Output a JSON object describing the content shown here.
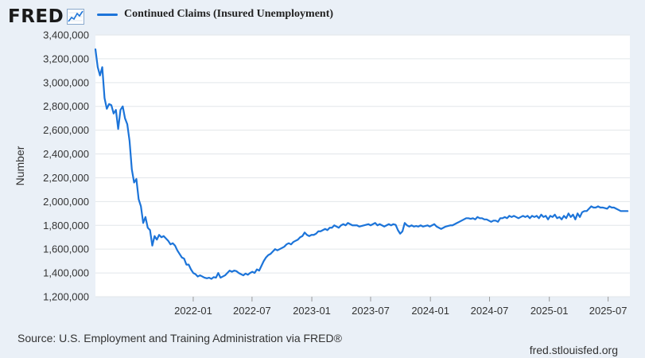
{
  "header": {
    "logo_text": "FRED",
    "logo_icon": "chart-line-icon"
  },
  "legend": {
    "label": "Continued Claims (Insured Unemployment)",
    "color": "#1c74d9"
  },
  "footer": {
    "source": "Source: U.S. Employment and Training Administration via FRED®",
    "site": "fred.stlouisfed.org"
  },
  "colors": {
    "background": "#eaf0f7",
    "plot_background": "#ffffff",
    "series": "#1c74d9",
    "grid": "#e2e6ea"
  },
  "chart_data": {
    "type": "line",
    "title": "",
    "xlabel": "",
    "ylabel": "Number",
    "ylim": [
      1200000,
      3400000
    ],
    "xlim": [
      "2021-03-06",
      "2025-09-06"
    ],
    "grid": "horizontal",
    "legend_position": "top-left",
    "y_ticks": [
      1200000,
      1400000,
      1600000,
      1800000,
      2000000,
      2200000,
      2400000,
      2600000,
      2800000,
      3000000,
      3200000,
      3400000
    ],
    "y_tick_labels": [
      "1,200,000",
      "1,400,000",
      "1,600,000",
      "1,800,000",
      "2,000,000",
      "2,200,000",
      "2,400,000",
      "2,600,000",
      "2,800,000",
      "3,000,000",
      "3,200,000",
      "3,400,000"
    ],
    "x_ticks": [
      "2022-01-01",
      "2022-07-01",
      "2023-01-01",
      "2023-07-01",
      "2024-01-01",
      "2024-07-01",
      "2025-01-01",
      "2025-07-01"
    ],
    "x_tick_labels": [
      "2022-01",
      "2022-07",
      "2023-01",
      "2023-07",
      "2024-01",
      "2024-07",
      "2025-01",
      "2025-07"
    ],
    "series": [
      {
        "name": "Continued Claims (Insured Unemployment)",
        "points": [
          [
            "2021-03-06",
            3280000
          ],
          [
            "2021-03-13",
            3130000
          ],
          [
            "2021-03-20",
            3060000
          ],
          [
            "2021-03-27",
            3130000
          ],
          [
            "2021-04-03",
            2870000
          ],
          [
            "2021-04-10",
            2780000
          ],
          [
            "2021-04-17",
            2820000
          ],
          [
            "2021-04-24",
            2810000
          ],
          [
            "2021-05-01",
            2740000
          ],
          [
            "2021-05-08",
            2770000
          ],
          [
            "2021-05-15",
            2610000
          ],
          [
            "2021-05-22",
            2770000
          ],
          [
            "2021-05-29",
            2800000
          ],
          [
            "2021-06-05",
            2700000
          ],
          [
            "2021-06-12",
            2650000
          ],
          [
            "2021-06-19",
            2510000
          ],
          [
            "2021-06-26",
            2270000
          ],
          [
            "2021-07-03",
            2160000
          ],
          [
            "2021-07-10",
            2190000
          ],
          [
            "2021-07-17",
            2020000
          ],
          [
            "2021-07-24",
            1960000
          ],
          [
            "2021-07-31",
            1820000
          ],
          [
            "2021-08-07",
            1870000
          ],
          [
            "2021-08-14",
            1780000
          ],
          [
            "2021-08-21",
            1760000
          ],
          [
            "2021-08-28",
            1630000
          ],
          [
            "2021-09-04",
            1710000
          ],
          [
            "2021-09-11",
            1680000
          ],
          [
            "2021-09-18",
            1720000
          ],
          [
            "2021-09-25",
            1700000
          ],
          [
            "2021-10-02",
            1710000
          ],
          [
            "2021-10-09",
            1690000
          ],
          [
            "2021-10-16",
            1670000
          ],
          [
            "2021-10-23",
            1640000
          ],
          [
            "2021-10-30",
            1650000
          ],
          [
            "2021-11-06",
            1630000
          ],
          [
            "2021-11-13",
            1590000
          ],
          [
            "2021-11-20",
            1560000
          ],
          [
            "2021-11-27",
            1530000
          ],
          [
            "2021-12-04",
            1520000
          ],
          [
            "2021-12-11",
            1470000
          ],
          [
            "2021-12-18",
            1470000
          ],
          [
            "2021-12-25",
            1430000
          ],
          [
            "2022-01-01",
            1400000
          ],
          [
            "2022-01-08",
            1390000
          ],
          [
            "2022-01-15",
            1370000
          ],
          [
            "2022-01-22",
            1380000
          ],
          [
            "2022-01-29",
            1370000
          ],
          [
            "2022-02-05",
            1360000
          ],
          [
            "2022-02-12",
            1355000
          ],
          [
            "2022-02-19",
            1360000
          ],
          [
            "2022-02-26",
            1350000
          ],
          [
            "2022-03-05",
            1365000
          ],
          [
            "2022-03-12",
            1360000
          ],
          [
            "2022-03-19",
            1400000
          ],
          [
            "2022-03-26",
            1360000
          ],
          [
            "2022-04-02",
            1370000
          ],
          [
            "2022-04-09",
            1380000
          ],
          [
            "2022-04-16",
            1400000
          ],
          [
            "2022-04-23",
            1420000
          ],
          [
            "2022-04-30",
            1410000
          ],
          [
            "2022-05-07",
            1420000
          ],
          [
            "2022-05-14",
            1415000
          ],
          [
            "2022-05-21",
            1400000
          ],
          [
            "2022-05-28",
            1390000
          ],
          [
            "2022-06-04",
            1380000
          ],
          [
            "2022-06-11",
            1395000
          ],
          [
            "2022-06-18",
            1385000
          ],
          [
            "2022-06-25",
            1400000
          ],
          [
            "2022-07-02",
            1410000
          ],
          [
            "2022-07-09",
            1400000
          ],
          [
            "2022-07-16",
            1430000
          ],
          [
            "2022-07-23",
            1420000
          ],
          [
            "2022-07-30",
            1460000
          ],
          [
            "2022-08-06",
            1500000
          ],
          [
            "2022-08-13",
            1530000
          ],
          [
            "2022-08-20",
            1550000
          ],
          [
            "2022-08-27",
            1560000
          ],
          [
            "2022-09-03",
            1580000
          ],
          [
            "2022-09-10",
            1600000
          ],
          [
            "2022-09-17",
            1590000
          ],
          [
            "2022-09-24",
            1600000
          ],
          [
            "2022-10-01",
            1610000
          ],
          [
            "2022-10-08",
            1620000
          ],
          [
            "2022-10-15",
            1640000
          ],
          [
            "2022-10-22",
            1650000
          ],
          [
            "2022-10-29",
            1640000
          ],
          [
            "2022-11-05",
            1660000
          ],
          [
            "2022-11-12",
            1670000
          ],
          [
            "2022-11-19",
            1680000
          ],
          [
            "2022-11-26",
            1700000
          ],
          [
            "2022-12-03",
            1710000
          ],
          [
            "2022-12-10",
            1740000
          ],
          [
            "2022-12-17",
            1720000
          ],
          [
            "2022-12-24",
            1710000
          ],
          [
            "2022-12-31",
            1720000
          ],
          [
            "2023-01-07",
            1720000
          ],
          [
            "2023-01-14",
            1730000
          ],
          [
            "2023-01-21",
            1750000
          ],
          [
            "2023-01-28",
            1750000
          ],
          [
            "2023-02-04",
            1760000
          ],
          [
            "2023-02-11",
            1770000
          ],
          [
            "2023-02-18",
            1760000
          ],
          [
            "2023-02-25",
            1780000
          ],
          [
            "2023-03-04",
            1780000
          ],
          [
            "2023-03-11",
            1800000
          ],
          [
            "2023-03-18",
            1790000
          ],
          [
            "2023-03-25",
            1780000
          ],
          [
            "2023-04-01",
            1800000
          ],
          [
            "2023-04-08",
            1810000
          ],
          [
            "2023-04-15",
            1800000
          ],
          [
            "2023-04-22",
            1820000
          ],
          [
            "2023-04-29",
            1810000
          ],
          [
            "2023-05-06",
            1800000
          ],
          [
            "2023-05-13",
            1800000
          ],
          [
            "2023-05-20",
            1800000
          ],
          [
            "2023-05-27",
            1790000
          ],
          [
            "2023-06-03",
            1795000
          ],
          [
            "2023-06-10",
            1800000
          ],
          [
            "2023-06-17",
            1805000
          ],
          [
            "2023-06-24",
            1810000
          ],
          [
            "2023-07-01",
            1800000
          ],
          [
            "2023-07-08",
            1810000
          ],
          [
            "2023-07-15",
            1820000
          ],
          [
            "2023-07-22",
            1800000
          ],
          [
            "2023-07-29",
            1810000
          ],
          [
            "2023-08-05",
            1800000
          ],
          [
            "2023-08-12",
            1790000
          ],
          [
            "2023-08-19",
            1800000
          ],
          [
            "2023-08-26",
            1810000
          ],
          [
            "2023-09-02",
            1800000
          ],
          [
            "2023-09-09",
            1810000
          ],
          [
            "2023-09-16",
            1805000
          ],
          [
            "2023-09-23",
            1760000
          ],
          [
            "2023-09-30",
            1730000
          ],
          [
            "2023-10-07",
            1750000
          ],
          [
            "2023-10-14",
            1820000
          ],
          [
            "2023-10-21",
            1800000
          ],
          [
            "2023-10-28",
            1790000
          ],
          [
            "2023-11-04",
            1800000
          ],
          [
            "2023-11-11",
            1790000
          ],
          [
            "2023-11-18",
            1795000
          ],
          [
            "2023-11-25",
            1790000
          ],
          [
            "2023-12-02",
            1800000
          ],
          [
            "2023-12-09",
            1790000
          ],
          [
            "2023-12-16",
            1795000
          ],
          [
            "2023-12-23",
            1800000
          ],
          [
            "2023-12-30",
            1790000
          ],
          [
            "2024-01-06",
            1800000
          ],
          [
            "2024-01-13",
            1810000
          ],
          [
            "2024-01-20",
            1790000
          ],
          [
            "2024-01-27",
            1780000
          ],
          [
            "2024-02-03",
            1770000
          ],
          [
            "2024-02-10",
            1780000
          ],
          [
            "2024-02-17",
            1790000
          ],
          [
            "2024-02-24",
            1795000
          ],
          [
            "2024-03-02",
            1800000
          ],
          [
            "2024-03-09",
            1800000
          ],
          [
            "2024-03-16",
            1810000
          ],
          [
            "2024-03-23",
            1820000
          ],
          [
            "2024-03-30",
            1830000
          ],
          [
            "2024-04-06",
            1840000
          ],
          [
            "2024-04-13",
            1850000
          ],
          [
            "2024-04-20",
            1860000
          ],
          [
            "2024-04-27",
            1860000
          ],
          [
            "2024-05-04",
            1855000
          ],
          [
            "2024-05-11",
            1860000
          ],
          [
            "2024-05-18",
            1850000
          ],
          [
            "2024-05-25",
            1870000
          ],
          [
            "2024-06-01",
            1860000
          ],
          [
            "2024-06-08",
            1860000
          ],
          [
            "2024-06-15",
            1850000
          ],
          [
            "2024-06-22",
            1850000
          ],
          [
            "2024-06-29",
            1840000
          ],
          [
            "2024-07-06",
            1830000
          ],
          [
            "2024-07-13",
            1840000
          ],
          [
            "2024-07-20",
            1840000
          ],
          [
            "2024-07-27",
            1830000
          ],
          [
            "2024-08-03",
            1860000
          ],
          [
            "2024-08-10",
            1860000
          ],
          [
            "2024-08-17",
            1870000
          ],
          [
            "2024-08-24",
            1860000
          ],
          [
            "2024-08-31",
            1880000
          ],
          [
            "2024-09-07",
            1870000
          ],
          [
            "2024-09-14",
            1880000
          ],
          [
            "2024-09-21",
            1870000
          ],
          [
            "2024-09-28",
            1860000
          ],
          [
            "2024-10-05",
            1870000
          ],
          [
            "2024-10-12",
            1880000
          ],
          [
            "2024-10-19",
            1870000
          ],
          [
            "2024-10-26",
            1880000
          ],
          [
            "2024-11-02",
            1860000
          ],
          [
            "2024-11-09",
            1880000
          ],
          [
            "2024-11-16",
            1870000
          ],
          [
            "2024-11-23",
            1880000
          ],
          [
            "2024-11-30",
            1860000
          ],
          [
            "2024-12-07",
            1890000
          ],
          [
            "2024-12-14",
            1870000
          ],
          [
            "2024-12-21",
            1880000
          ],
          [
            "2024-12-28",
            1850000
          ],
          [
            "2025-01-04",
            1880000
          ],
          [
            "2025-01-11",
            1870000
          ],
          [
            "2025-01-18",
            1890000
          ],
          [
            "2025-01-25",
            1860000
          ],
          [
            "2025-02-01",
            1870000
          ],
          [
            "2025-02-08",
            1850000
          ],
          [
            "2025-02-15",
            1880000
          ],
          [
            "2025-02-22",
            1860000
          ],
          [
            "2025-03-01",
            1900000
          ],
          [
            "2025-03-08",
            1870000
          ],
          [
            "2025-03-15",
            1890000
          ],
          [
            "2025-03-22",
            1850000
          ],
          [
            "2025-03-29",
            1900000
          ],
          [
            "2025-04-05",
            1870000
          ],
          [
            "2025-04-12",
            1910000
          ],
          [
            "2025-04-19",
            1920000
          ],
          [
            "2025-04-26",
            1920000
          ],
          [
            "2025-05-03",
            1940000
          ],
          [
            "2025-05-10",
            1960000
          ],
          [
            "2025-05-17",
            1950000
          ],
          [
            "2025-05-24",
            1950000
          ],
          [
            "2025-05-31",
            1960000
          ],
          [
            "2025-06-07",
            1950000
          ],
          [
            "2025-06-14",
            1950000
          ],
          [
            "2025-06-21",
            1945000
          ],
          [
            "2025-06-28",
            1940000
          ],
          [
            "2025-07-05",
            1960000
          ],
          [
            "2025-07-12",
            1950000
          ],
          [
            "2025-07-19",
            1950000
          ],
          [
            "2025-07-26",
            1940000
          ],
          [
            "2025-08-02",
            1930000
          ],
          [
            "2025-08-09",
            1920000
          ],
          [
            "2025-08-16",
            1920000
          ],
          [
            "2025-08-23",
            1920000
          ],
          [
            "2025-08-30",
            1920000
          ]
        ]
      }
    ]
  }
}
